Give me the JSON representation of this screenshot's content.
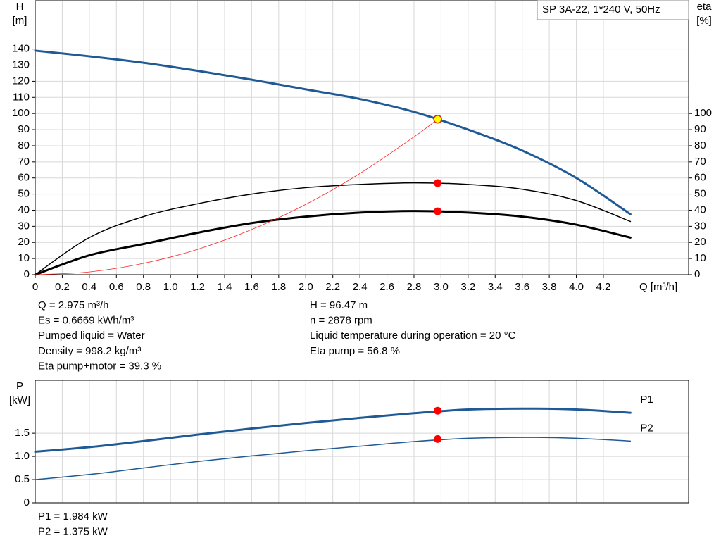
{
  "chart_data": [
    {
      "type": "line",
      "title": "SP 3A-22, 1*240 V, 50Hz",
      "y_label": "H",
      "y_unit": "[m]",
      "y2_label": "eta",
      "y2_unit": "[%]",
      "x_label": "Q [m³/h]",
      "xlim": [
        0,
        4.83
      ],
      "ylim": [
        0,
        170
      ],
      "y2lim": [
        0,
        170
      ],
      "grid": true,
      "xticks": [
        0,
        0.2,
        0.4,
        0.6,
        0.8,
        {
          "value": 1,
          "label": "1.0"
        },
        1.2,
        1.4,
        1.6,
        1.8,
        {
          "value": 2,
          "label": "2.0"
        },
        2.2,
        2.4,
        2.6,
        2.8,
        {
          "value": 3,
          "label": "3.0"
        },
        3.2,
        3.4,
        3.6,
        3.8,
        {
          "value": 4,
          "label": "4.0"
        },
        4.2
      ],
      "yticks": [
        0,
        10,
        20,
        30,
        40,
        50,
        60,
        70,
        80,
        90,
        100,
        110,
        120,
        130,
        140
      ],
      "y2ticks": [
        0,
        10,
        20,
        30,
        40,
        50,
        60,
        70,
        80,
        90,
        100
      ],
      "series": [
        {
          "color": "#1f5a96",
          "line_width": 3,
          "x": [
            0,
            0.4,
            0.8,
            1.2,
            1.6,
            2.0,
            2.4,
            2.8,
            3.2,
            3.6,
            4.0,
            4.4
          ],
          "values": [
            139,
            135.5,
            131.5,
            126.5,
            121,
            115,
            109,
            101,
            90,
            77,
            60,
            37.5
          ]
        },
        {
          "color": "#000000",
          "line_width": 1.5,
          "axis": "y2",
          "x": [
            0,
            0.4,
            0.8,
            1.2,
            1.6,
            2.0,
            2.4,
            2.8,
            3.2,
            3.6,
            4.0,
            4.4
          ],
          "values": [
            0,
            23,
            36,
            44,
            50,
            54,
            56,
            57,
            56,
            53,
            46,
            33
          ]
        },
        {
          "color": "#000000",
          "line_width": 3,
          "axis": "y2",
          "x": [
            0,
            0.4,
            0.8,
            1.2,
            1.6,
            2.0,
            2.4,
            2.8,
            3.2,
            3.6,
            4.0,
            4.4
          ],
          "values": [
            0,
            12,
            19,
            26,
            32,
            36,
            38.5,
            39.5,
            38.5,
            36,
            31,
            23
          ]
        },
        {
          "color": "#ff2020",
          "line_width": 0.8,
          "x": [
            0,
            0.4,
            0.8,
            1.2,
            1.6,
            2.0,
            2.4,
            2.8,
            2.975
          ],
          "values": [
            0,
            1.7,
            7,
            15.7,
            28,
            43.6,
            62.8,
            85.5,
            96.47
          ]
        }
      ],
      "points": [
        {
          "x": 2.975,
          "y": 96.47,
          "color": "#ffff00"
        },
        {
          "x": 2.975,
          "y": 56.8,
          "color": "#ff0000",
          "axis": "y2"
        },
        {
          "x": 2.975,
          "y": 39.3,
          "color": "#ff0000",
          "axis": "y2"
        }
      ]
    },
    {
      "type": "line",
      "y_label": "P",
      "y_unit": "[kW]",
      "xlim": [
        0,
        4.83
      ],
      "ylim": [
        0,
        2.64
      ],
      "grid": true,
      "yticks": [
        0,
        0.5,
        {
          "value": 1,
          "label": "1.0"
        },
        1.5
      ],
      "series": [
        {
          "name": "P1",
          "color": "#1f5a96",
          "line_width": 3,
          "x": [
            0,
            0.4,
            0.8,
            1.2,
            1.6,
            2.0,
            2.4,
            2.8,
            3.2,
            3.6,
            4.0,
            4.4
          ],
          "values": [
            1.1,
            1.2,
            1.33,
            1.47,
            1.6,
            1.72,
            1.83,
            1.93,
            2.01,
            2.03,
            2.01,
            1.94
          ]
        },
        {
          "name": "P2",
          "color": "#1f5a96",
          "line_width": 1.5,
          "x": [
            0,
            0.4,
            0.8,
            1.2,
            1.6,
            2.0,
            2.4,
            2.8,
            3.2,
            3.6,
            4.0,
            4.4
          ],
          "values": [
            0.5,
            0.61,
            0.75,
            0.89,
            1.01,
            1.12,
            1.22,
            1.32,
            1.39,
            1.41,
            1.39,
            1.33
          ]
        }
      ],
      "points": [
        {
          "x": 2.975,
          "y": 1.984,
          "color": "#ff0000"
        },
        {
          "x": 2.975,
          "y": 1.375,
          "color": "#ff0000"
        }
      ]
    }
  ],
  "info": {
    "left": [
      "Q = 2.975 m³/h",
      "Es = 0.6669 kWh/m³",
      "Pumped liquid = Water",
      "Density = 998.2 kg/m³",
      "Eta pump+motor = 39.3 %"
    ],
    "right": [
      "H = 96.47 m",
      "n = 2878 rpm",
      "Liquid temperature during operation = 20 °C",
      "Eta pump = 56.8 %"
    ],
    "bottom": [
      "P1 = 1.984 kW",
      "P2 = 1.375 kW"
    ]
  }
}
